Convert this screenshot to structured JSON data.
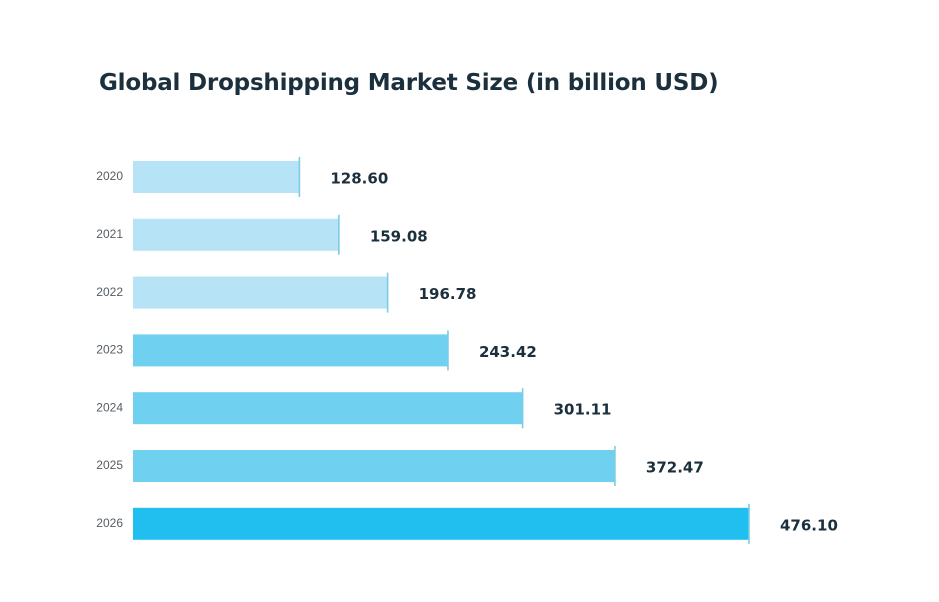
{
  "chart_data": {
    "type": "bar",
    "orientation": "horizontal",
    "title": "Global Dropshipping Market Size (in billion USD)",
    "categories": [
      "2020",
      "2021",
      "2022",
      "2023",
      "2024",
      "2025",
      "2026"
    ],
    "values": [
      128.6,
      159.08,
      196.78,
      243.42,
      301.11,
      372.47,
      476.1
    ],
    "value_labels": [
      "128.60",
      "159.08",
      "196.78",
      "243.42",
      "301.11",
      "372.47",
      "476.10"
    ],
    "xlim": [
      0,
      476.1
    ],
    "grid": false,
    "legend": "none",
    "colors": [
      "#b6e4f6",
      "#b6e4f6",
      "#b6e4f6",
      "#6fd0ef",
      "#6fd0ef",
      "#6fd0ef",
      "#20bff0"
    ],
    "end_mark_color": "#7ccbe6"
  }
}
